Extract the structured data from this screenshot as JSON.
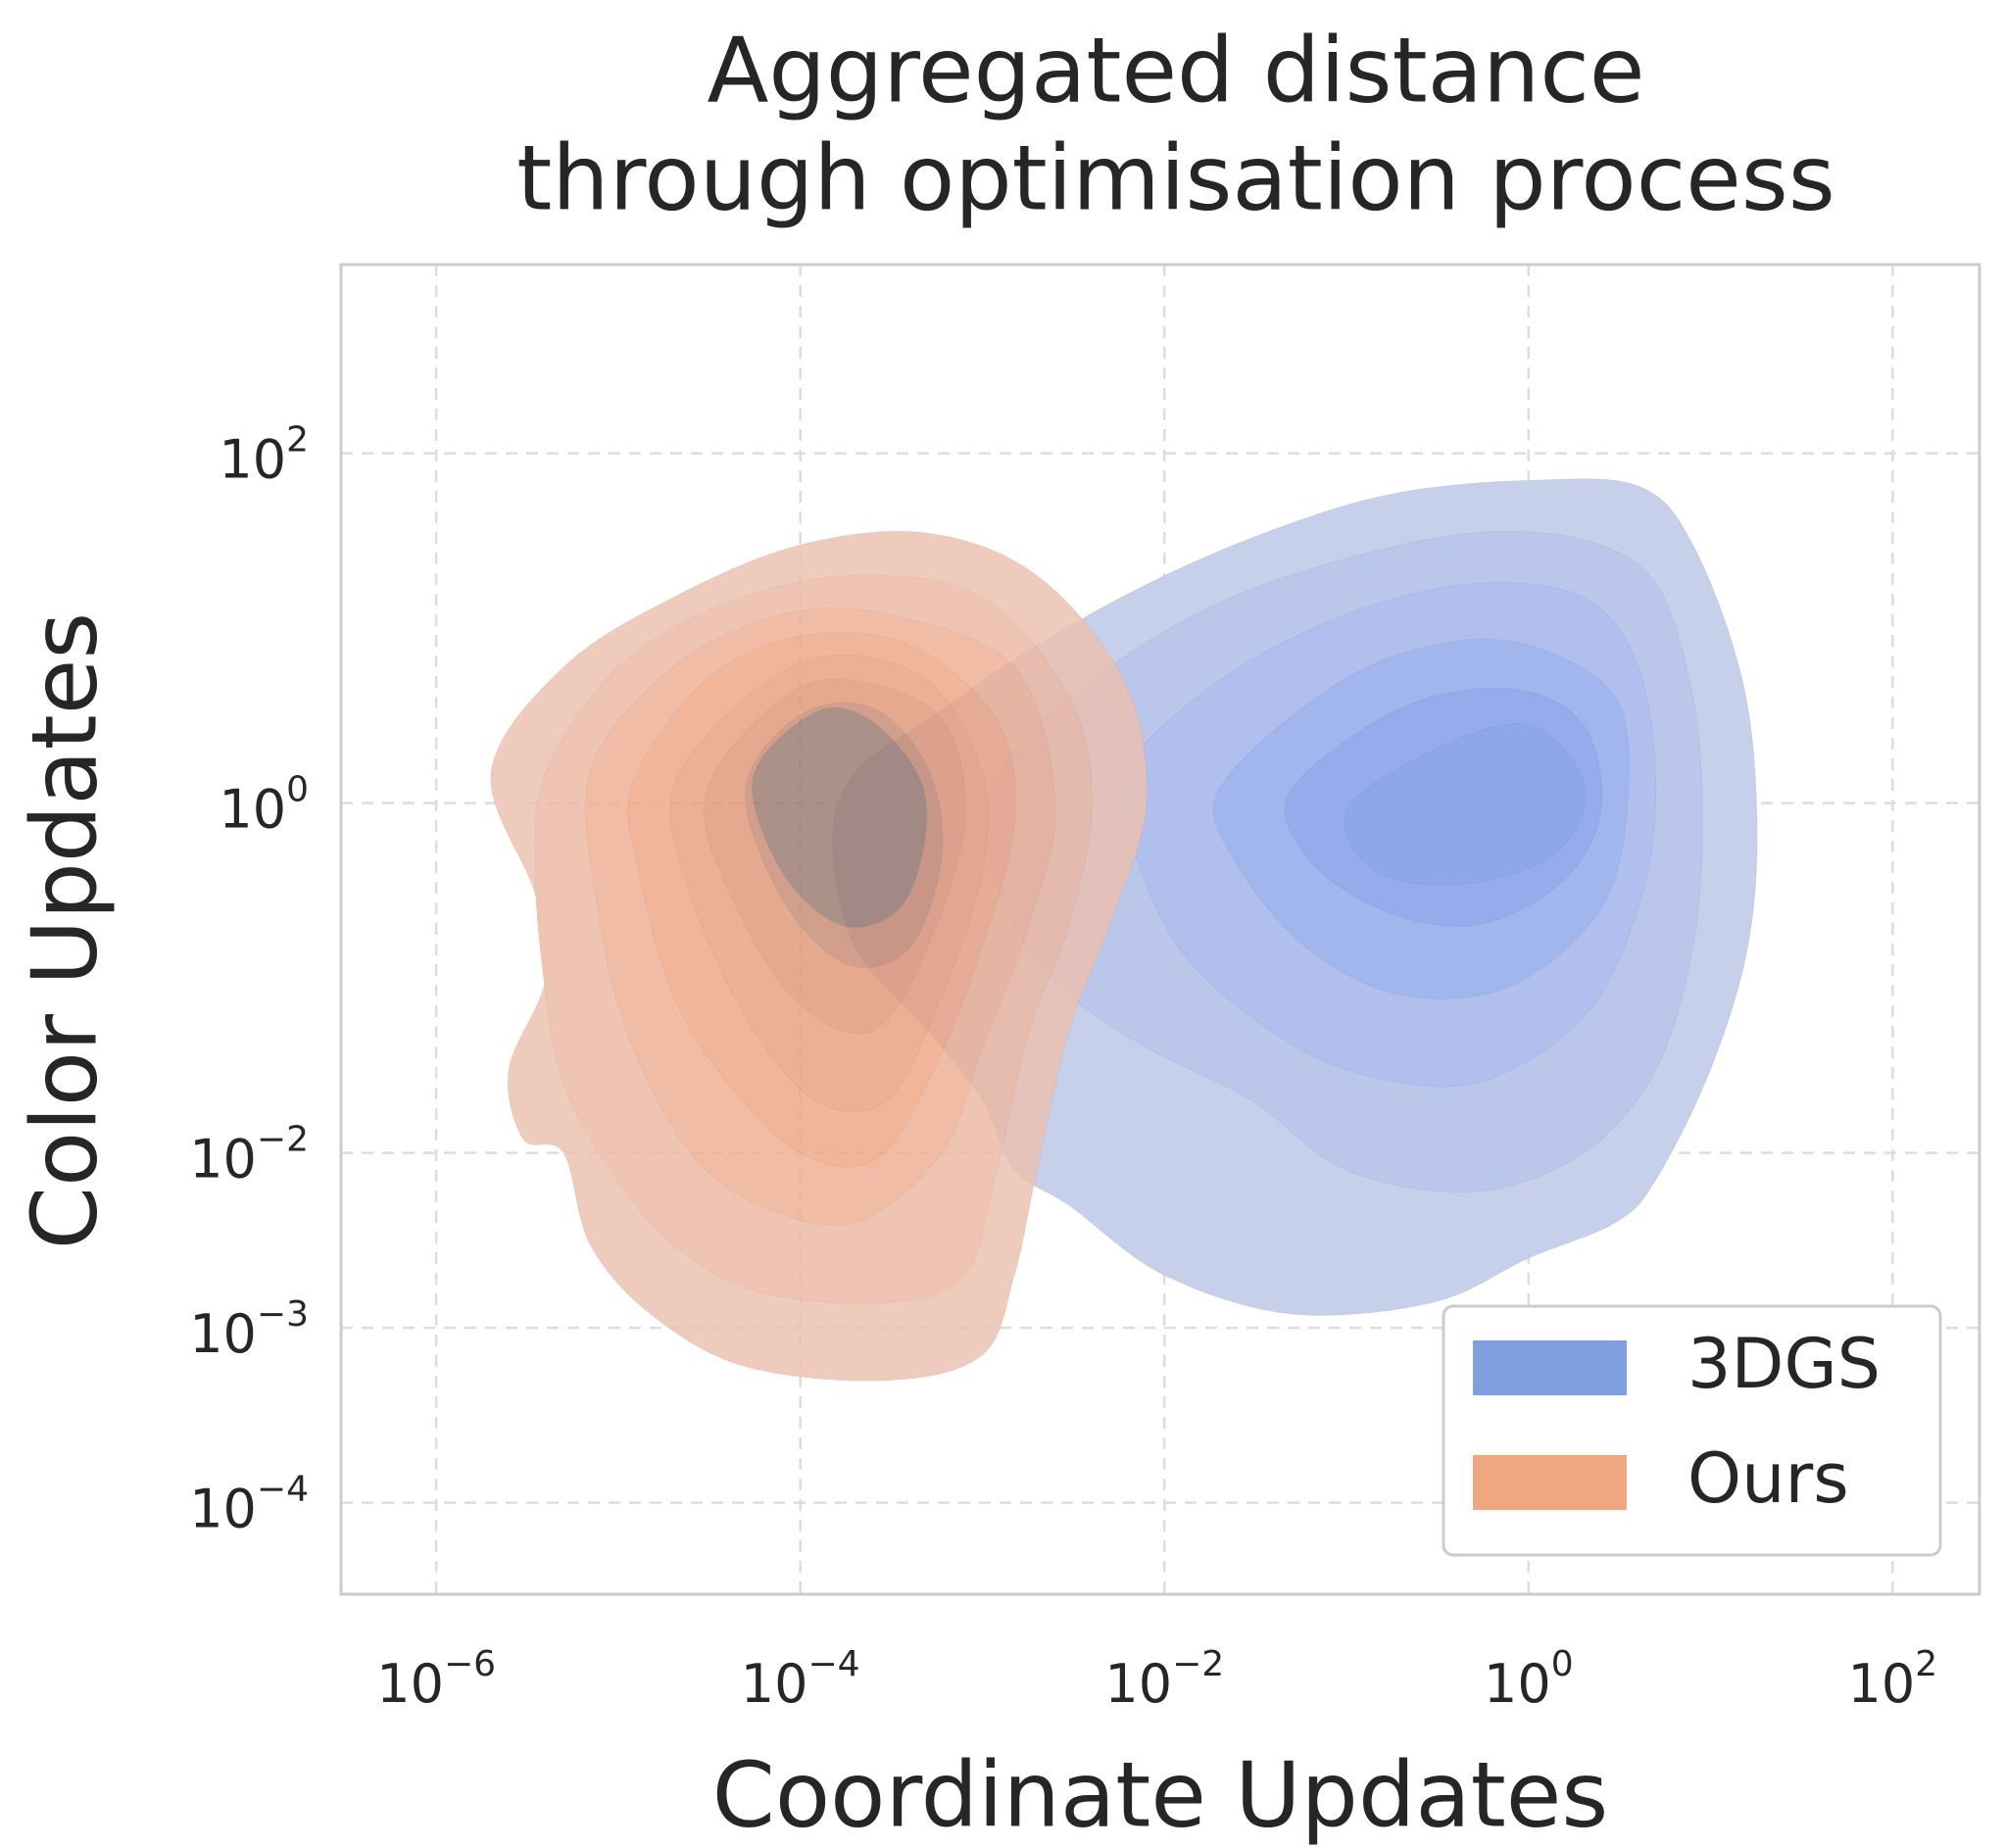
{
  "chart_data": {
    "type": "kde-contour",
    "title": [
      "Aggregated distance",
      "through optimisation process"
    ],
    "xlabel": "Coordinate Updates",
    "ylabel": "Color Updates",
    "xscale": "log",
    "yscale": "log",
    "xlim": [
      3e-07,
      300
    ],
    "ylim": [
      3e-05,
      1200
    ],
    "x_ticks": [
      {
        "value": 1e-06,
        "base": "10",
        "exp": "−6"
      },
      {
        "value": 0.0001,
        "base": "10",
        "exp": "−4"
      },
      {
        "value": 0.01,
        "base": "10",
        "exp": "−2"
      },
      {
        "value": 1,
        "base": "10",
        "exp": "0"
      },
      {
        "value": 100,
        "base": "10",
        "exp": "2"
      }
    ],
    "y_ticks": [
      {
        "value": 0.0001,
        "base": "10",
        "exp": "−4"
      },
      {
        "value": 0.001,
        "base": "10",
        "exp": "−3"
      },
      {
        "value": 0.01,
        "base": "10",
        "exp": "−2"
      },
      {
        "value": 1,
        "base": "10",
        "exp": "0"
      },
      {
        "value": 100,
        "base": "10",
        "exp": "2"
      }
    ],
    "grid": true,
    "legend_position": "lower-right",
    "series": [
      {
        "name": "3DGS",
        "color": "#7f9fdf",
        "contour_levels": [
          {
            "fill": "#c7d0ea",
            "outline": [
              [
                0.0002,
                1.5
              ],
              [
                0.0005,
                3
              ],
              [
                0.002,
                8
              ],
              [
                0.01,
                20
              ],
              [
                0.05,
                40
              ],
              [
                0.2,
                60
              ],
              [
                1,
                70
              ],
              [
                4,
                65
              ],
              [
                8,
                30
              ],
              [
                15,
                5
              ],
              [
                18,
                0.8
              ],
              [
                16,
                0.15
              ],
              [
                10,
                0.03
              ],
              [
                5,
                0.007
              ],
              [
                3,
                0.004
              ],
              [
                1,
                0.0025
              ],
              [
                0.3,
                0.0014
              ],
              [
                0.05,
                0.0012
              ],
              [
                0.01,
                0.002
              ],
              [
                0.003,
                0.005
              ],
              [
                0.0015,
                0.008
              ],
              [
                0.001,
                0.02
              ],
              [
                0.0005,
                0.05
              ],
              [
                0.0002,
                0.15
              ],
              [
                0.00015,
                0.6
              ]
            ]
          },
          {
            "fill": "#bbc6eb",
            "outline": [
              [
                0.0015,
                2
              ],
              [
                0.005,
                6
              ],
              [
                0.02,
                14
              ],
              [
                0.1,
                25
              ],
              [
                0.5,
                35
              ],
              [
                2,
                32
              ],
              [
                5,
                18
              ],
              [
                8,
                4
              ],
              [
                9,
                0.8
              ],
              [
                8,
                0.15
              ],
              [
                5,
                0.03
              ],
              [
                2,
                0.01
              ],
              [
                0.5,
                0.006
              ],
              [
                0.1,
                0.008
              ],
              [
                0.03,
                0.02
              ],
              [
                0.008,
                0.04
              ],
              [
                0.003,
                0.08
              ],
              [
                0.0015,
                0.2
              ],
              [
                0.001,
                0.7
              ]
            ]
          },
          {
            "fill": "#b0bfed",
            "outline": [
              [
                0.006,
                1.5
              ],
              [
                0.02,
                5
              ],
              [
                0.1,
                12
              ],
              [
                0.5,
                18
              ],
              [
                2,
                15
              ],
              [
                4,
                6
              ],
              [
                5,
                1.2
              ],
              [
                4,
                0.25
              ],
              [
                2,
                0.06
              ],
              [
                0.5,
                0.025
              ],
              [
                0.1,
                0.03
              ],
              [
                0.03,
                0.06
              ],
              [
                0.012,
                0.15
              ],
              [
                0.007,
                0.5
              ]
            ]
          },
          {
            "fill": "#a2b6ee",
            "outline": [
              [
                0.02,
                1.2
              ],
              [
                0.08,
                4.5
              ],
              [
                0.3,
                8
              ],
              [
                1,
                8
              ],
              [
                3,
                4
              ],
              [
                3.5,
                1
              ],
              [
                2.5,
                0.25
              ],
              [
                0.8,
                0.09
              ],
              [
                0.2,
                0.08
              ],
              [
                0.06,
                0.15
              ],
              [
                0.025,
                0.45
              ]
            ]
          },
          {
            "fill": "#95abec",
            "outline": [
              [
                0.05,
                1.2
              ],
              [
                0.2,
                3.5
              ],
              [
                0.8,
                4.5
              ],
              [
                2,
                2.8
              ],
              [
                2.5,
                0.9
              ],
              [
                1.5,
                0.35
              ],
              [
                0.5,
                0.2
              ],
              [
                0.15,
                0.25
              ],
              [
                0.06,
                0.5
              ]
            ]
          },
          {
            "fill": "#8da8e8",
            "outline": [
              [
                0.1,
                0.9
              ],
              [
                0.3,
                2
              ],
              [
                1,
                2.8
              ],
              [
                2,
                1.3
              ],
              [
                1.5,
                0.55
              ],
              [
                0.5,
                0.35
              ],
              [
                0.15,
                0.4
              ]
            ]
          }
        ]
      },
      {
        "name": "Ours",
        "color": "#f0a680",
        "contour_levels": [
          {
            "fill": "#ecc0b0",
            "outline": [
              [
                2e-06,
                1.5
              ],
              [
                5e-06,
                6
              ],
              [
                2e-05,
                15
              ],
              [
                0.0001,
                30
              ],
              [
                0.0005,
                35
              ],
              [
                0.002,
                20
              ],
              [
                0.006,
                5
              ],
              [
                0.008,
                1
              ],
              [
                0.005,
                0.2
              ],
              [
                0.003,
                0.05
              ],
              [
                0.002,
                0.008
              ],
              [
                0.0015,
                0.002
              ],
              [
                0.001,
                0.0007
              ],
              [
                0.0003,
                0.0005
              ],
              [
                5e-05,
                0.0006
              ],
              [
                1.5e-05,
                0.0012
              ],
              [
                7e-06,
                0.003
              ],
              [
                5e-06,
                0.01
              ],
              [
                3e-06,
                0.012
              ],
              [
                2.5e-06,
                0.03
              ],
              [
                4e-06,
                0.1
              ],
              [
                3.5e-06,
                0.3
              ]
            ]
          },
          {
            "fill": "#edb8a2",
            "outline": [
              [
                4e-06,
                1.5
              ],
              [
                1e-05,
                6
              ],
              [
                4e-05,
                14
              ],
              [
                0.0002,
                20
              ],
              [
                0.001,
                15
              ],
              [
                0.003,
                4
              ],
              [
                0.004,
                1
              ],
              [
                0.003,
                0.2
              ],
              [
                0.0018,
                0.05
              ],
              [
                0.0012,
                0.008
              ],
              [
                0.0008,
                0.002
              ],
              [
                0.0003,
                0.0014
              ],
              [
                6e-05,
                0.0016
              ],
              [
                2e-05,
                0.003
              ],
              [
                9e-06,
                0.008
              ],
              [
                5e-06,
                0.025
              ],
              [
                4e-06,
                0.08
              ],
              [
                3.5e-06,
                0.4
              ]
            ]
          },
          {
            "fill": "#eeae93",
            "outline": [
              [
                7e-06,
                1.5
              ],
              [
                2e-05,
                6
              ],
              [
                8e-05,
                12
              ],
              [
                0.0003,
                12
              ],
              [
                0.0015,
                6
              ],
              [
                0.0025,
                1
              ],
              [
                0.0018,
                0.2
              ],
              [
                0.001,
                0.04
              ],
              [
                0.0006,
                0.01
              ],
              [
                0.0002,
                0.004
              ],
              [
                6e-05,
                0.005
              ],
              [
                2.5e-05,
                0.01
              ],
              [
                1.2e-05,
                0.04
              ],
              [
                8e-06,
                0.2
              ]
            ]
          },
          {
            "fill": "#eea585",
            "outline": [
              [
                1.2e-05,
                1.3
              ],
              [
                3e-05,
                5
              ],
              [
                0.0001,
                9
              ],
              [
                0.0004,
                8
              ],
              [
                0.0012,
                3
              ],
              [
                0.0015,
                0.8
              ],
              [
                0.001,
                0.15
              ],
              [
                0.0005,
                0.025
              ],
              [
                0.00025,
                0.009
              ],
              [
                0.0001,
                0.01
              ],
              [
                4e-05,
                0.025
              ],
              [
                2e-05,
                0.08
              ],
              [
                1.3e-05,
                0.4
              ]
            ]
          },
          {
            "fill": "#e99f80",
            "outline": [
              [
                2e-05,
                1.2
              ],
              [
                5e-05,
                4
              ],
              [
                0.00015,
                7
              ],
              [
                0.0005,
                5
              ],
              [
                0.001,
                1.5
              ],
              [
                0.001,
                0.4
              ],
              [
                0.0006,
                0.08
              ],
              [
                0.0003,
                0.02
              ],
              [
                0.00012,
                0.02
              ],
              [
                5e-05,
                0.06
              ],
              [
                2.5e-05,
                0.3
              ]
            ]
          },
          {
            "fill": "#e09778",
            "outline": [
              [
                3e-05,
                1.1
              ],
              [
                8e-05,
                4
              ],
              [
                0.0002,
                5
              ],
              [
                0.0006,
                3
              ],
              [
                0.0008,
                0.8
              ],
              [
                0.0005,
                0.15
              ],
              [
                0.00025,
                0.05
              ],
              [
                0.0001,
                0.07
              ],
              [
                4.5e-05,
                0.25
              ]
            ]
          },
          {
            "fill": "#c88a72",
            "outline": [
              [
                5e-05,
                1.2
              ],
              [
                0.0001,
                3.2
              ],
              [
                0.00025,
                3.5
              ],
              [
                0.0005,
                1.6
              ],
              [
                0.0006,
                0.5
              ],
              [
                0.0004,
                0.15
              ],
              [
                0.00018,
                0.12
              ],
              [
                8e-05,
                0.28
              ]
            ]
          },
          {
            "fill": "#9a7a70",
            "outline": [
              [
                5.5e-05,
                1.4
              ],
              [
                0.00012,
                3.3
              ],
              [
                0.00024,
                3
              ],
              [
                0.00045,
                1.4
              ],
              [
                0.00048,
                0.6
              ],
              [
                0.00035,
                0.25
              ],
              [
                0.00017,
                0.2
              ],
              [
                8e-05,
                0.4
              ]
            ]
          }
        ]
      }
    ]
  }
}
